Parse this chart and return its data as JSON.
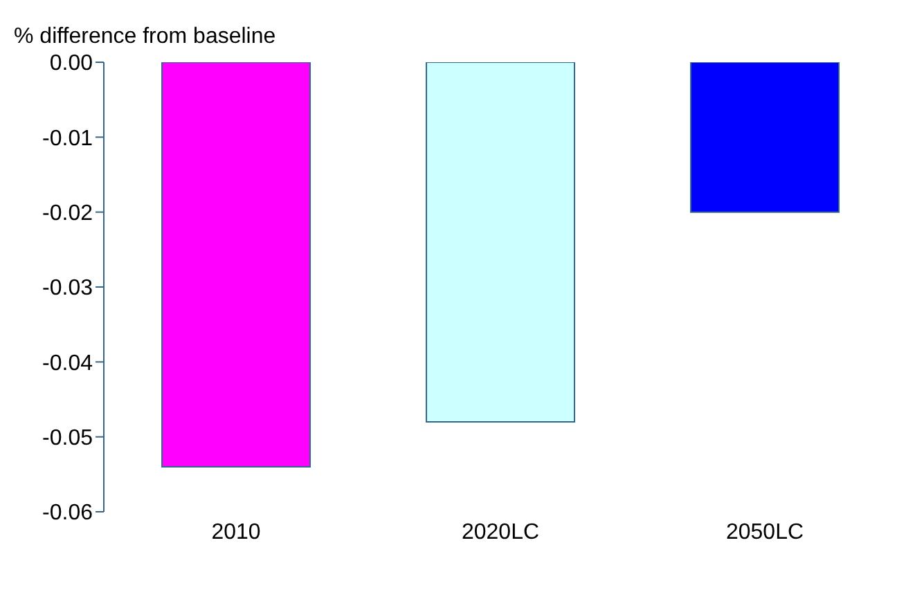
{
  "chart_data": {
    "type": "bar",
    "ylabel": "% difference from baseline",
    "categories": [
      "2010",
      "2020LC",
      "2050LC"
    ],
    "values": [
      -0.054,
      -0.048,
      -0.02
    ],
    "colors": [
      "#ff00ff",
      "#ccffff",
      "#0000ff"
    ],
    "ylim": [
      -0.06,
      0
    ],
    "yticks": [
      {
        "value": -0.06,
        "label": "-0.06"
      },
      {
        "value": -0.05,
        "label": "-0.05"
      },
      {
        "value": -0.04,
        "label": "-0.04"
      },
      {
        "value": -0.03,
        "label": "-0.03"
      },
      {
        "value": -0.02,
        "label": "-0.02"
      },
      {
        "value": -0.01,
        "label": "-0.01"
      },
      {
        "value": 0,
        "label": "0.00"
      }
    ]
  }
}
